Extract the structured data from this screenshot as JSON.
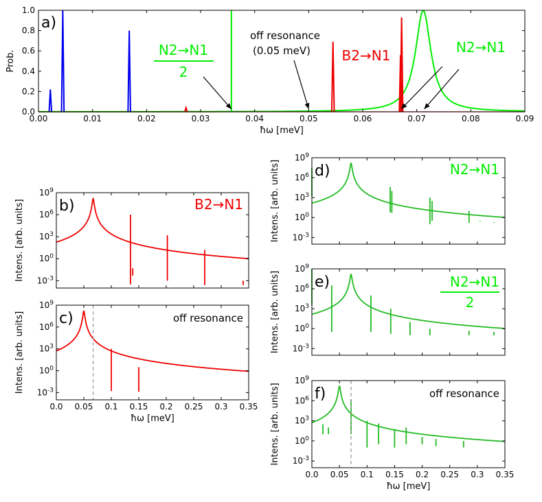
{
  "colors": {
    "blue": "#0000ee",
    "red": "#ee0000",
    "green": "#00ee00",
    "darkgreen": "#22bb22",
    "dash": "#999999",
    "axis": "#000000"
  },
  "chart_data": [
    {
      "id": "a",
      "type": "line",
      "panel_label": "a)",
      "ylabel": "Prob.",
      "xlabel": "ħω [meV]",
      "xlim": [
        0,
        0.09
      ],
      "ylim": [
        0,
        1.0
      ],
      "xticks": [
        "0.00",
        "0.01",
        "0.02",
        "0.03",
        "0.04",
        "0.05",
        "0.06",
        "0.07",
        "0.08",
        "0.09"
      ],
      "yticks": [
        "0.0",
        "0.2",
        "0.4",
        "0.6",
        "0.8",
        "1.0"
      ],
      "series": [
        {
          "name": "blue peaks",
          "color": "blue",
          "peaks": [
            [
              0.0022,
              0.22
            ],
            [
              0.0045,
              1.0
            ],
            [
              0.0168,
              0.8
            ]
          ]
        },
        {
          "name": "red peaks",
          "color": "red",
          "peaks": [
            [
              0.0273,
              0.04
            ],
            [
              0.0545,
              0.69
            ],
            [
              0.067,
              0.56
            ],
            [
              0.0672,
              0.93
            ]
          ]
        },
        {
          "name": "green",
          "color": "green",
          "spike": [
            0.0357,
            1.0
          ],
          "lorentz": {
            "center": 0.0712,
            "width": 0.0035,
            "height": 1.0
          }
        }
      ],
      "annotations": [
        {
          "text": "N2→N1",
          "color": "green",
          "target": [
            0.0357,
            0.0
          ]
        },
        {
          "text": "2",
          "color": "green"
        },
        {
          "text": "off resonance",
          "color": "axis",
          "target": [
            0.05,
            0.0
          ]
        },
        {
          "text": "(0.05 meV)",
          "color": "axis"
        },
        {
          "text": "B2→N1",
          "color": "red",
          "target": [
            0.067,
            0.0
          ]
        },
        {
          "text": "N2→N1",
          "color": "green",
          "target": [
            0.071,
            0.0
          ]
        }
      ]
    },
    {
      "id": "b",
      "type": "line",
      "panel_label": "b)",
      "legend": "B2→N1",
      "legend_color": "red",
      "ylabel": "Intens. [arb. units]",
      "xlim": [
        0,
        0.35
      ],
      "ylim_log": [
        -4,
        9
      ],
      "yticks": [
        "10^9",
        "10^6",
        "10^3",
        "10^0",
        "10^-3"
      ],
      "color": "red",
      "center": 0.067,
      "peaks": [
        [
          0.135,
          6.0,
          -3.5
        ],
        [
          0.139,
          -1.3,
          -2.3
        ],
        [
          0.202,
          3.2,
          -3.0
        ],
        [
          0.27,
          1.2,
          -3.6
        ],
        [
          0.34,
          -3.0,
          -3.6
        ]
      ],
      "base": [
        -0.8,
        -3.2
      ]
    },
    {
      "id": "c",
      "type": "line",
      "panel_label": "c)",
      "legend": "off resonance",
      "legend_color": "axis",
      "ylabel": "Intens. [arb. units]",
      "xlabel": "ħω [meV]",
      "xlim": [
        0,
        0.35
      ],
      "ylim_log": [
        -4,
        9
      ],
      "xticks": [
        "0.0",
        "0.05",
        "0.1",
        "0.15",
        "0.2",
        "0.25",
        "0.3",
        "0.35"
      ],
      "yticks": [
        "10^9",
        "10^6",
        "10^3",
        "10^0",
        "10^-3"
      ],
      "color": "red",
      "center": 0.05,
      "dashed_x": 0.067,
      "peaks": [
        [
          0.1,
          3.0,
          -2.8
        ],
        [
          0.15,
          0.5,
          -2.9
        ]
      ],
      "base": [
        -2.0,
        -3.6
      ]
    },
    {
      "id": "d",
      "type": "line",
      "panel_label": "d)",
      "legend": "N2→N1",
      "legend_color": "green",
      "ylabel": "Intens. [arb. units]",
      "xlim": [
        0,
        0.35
      ],
      "ylim_log": [
        -4,
        9
      ],
      "yticks": [
        "10^9",
        "10^6",
        "10^3",
        "10^0",
        "10^-3"
      ],
      "color": "darkgreen",
      "center": 0.071,
      "peaks": [
        [
          0.0,
          7.5,
          3.2
        ],
        [
          0.142,
          4.6,
          0.8
        ],
        [
          0.145,
          4.0,
          0.7
        ],
        [
          0.214,
          3.0,
          -1.0
        ],
        [
          0.218,
          2.5,
          -0.5
        ],
        [
          0.285,
          1.0,
          -0.8
        ],
        [
          0.305,
          -0.5,
          -0.6
        ],
        [
          0.33,
          -0.7,
          -0.8
        ]
      ],
      "base": [
        1.6,
        -0.8
      ]
    },
    {
      "id": "e",
      "type": "line",
      "panel_label": "e)",
      "legend": "N2→N1",
      "legend_sub": "2",
      "legend_color": "green",
      "ylabel": "Intens. [arb. units]",
      "xlim": [
        0,
        0.35
      ],
      "ylim_log": [
        -4,
        9
      ],
      "yticks": [
        "10^9",
        "10^6",
        "10^3",
        "10^0",
        "10^-3"
      ],
      "color": "darkgreen",
      "center": 0.071,
      "peaks": [
        [
          0.0,
          9.5,
          3.5
        ],
        [
          0.036,
          6.5,
          -0.5
        ],
        [
          0.107,
          5.0,
          -0.5
        ],
        [
          0.143,
          3.0,
          -0.8
        ],
        [
          0.178,
          1.0,
          -1.0
        ],
        [
          0.214,
          0.0,
          -1.0
        ],
        [
          0.285,
          -0.3,
          -1.0
        ],
        [
          0.33,
          -0.5,
          -1.0
        ]
      ],
      "base": [
        1.2,
        -0.8
      ]
    },
    {
      "id": "f",
      "type": "line",
      "panel_label": "f)",
      "legend": "off resonance",
      "legend_color": "axis",
      "ylabel": "Intens. [arb. units]",
      "xlabel": "ħω [meV]",
      "xlim": [
        0,
        0.35
      ],
      "ylim_log": [
        -4,
        9
      ],
      "xticks": [
        "0.0",
        "0.05",
        "0.1",
        "0.15",
        "0.2",
        "0.25",
        "0.3",
        "0.35"
      ],
      "yticks": [
        "10^9",
        "10^6",
        "10^3",
        "10^0",
        "10^-3"
      ],
      "color": "darkgreen",
      "center": 0.05,
      "dashed_x": 0.071,
      "peaks": [
        [
          0.02,
          2.5,
          1.0
        ],
        [
          0.03,
          2.0,
          1.0
        ],
        [
          0.071,
          6.2,
          1.0
        ],
        [
          0.1,
          3.0,
          -1.0
        ],
        [
          0.121,
          2.6,
          -0.5
        ],
        [
          0.15,
          1.8,
          -1.0
        ],
        [
          0.171,
          2.0,
          -0.5
        ],
        [
          0.2,
          0.6,
          -0.5
        ],
        [
          0.225,
          0.3,
          -0.8
        ],
        [
          0.275,
          0.0,
          -1.0
        ]
      ],
      "base": [
        1.4,
        -0.3
      ]
    }
  ]
}
